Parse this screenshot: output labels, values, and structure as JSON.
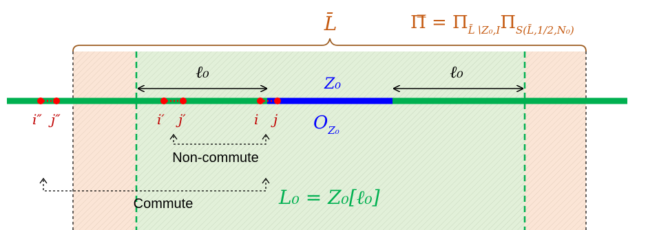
{
  "labels": {
    "l_bar": "L̄",
    "pi_formula": "Π̿ = Π",
    "pi_sub1": "L̄∖Z₀,I",
    "pi_mid": "Π",
    "pi_sub2": "S(L̄,1/2,N₀)",
    "ell0_left": "ℓ₀",
    "ell0_right": "ℓ₀",
    "z0": "Z₀",
    "o_z0": "O",
    "o_z0_sub": "Z₀",
    "i_dd": "i″",
    "j_dd": "j″",
    "i_p": "i′",
    "j_p": "j′",
    "i": "i",
    "j": "j",
    "non_commute": "Non-commute",
    "commute": "Commute",
    "l0_eq": "L₀ = Z₀[ℓ₀]"
  },
  "colors": {
    "outer_region": "#fbe5d6",
    "inner_region": "#e2f0d9",
    "line": "#00b050",
    "highlight": "#0000ff",
    "sites": "#ff0000",
    "brace": "#9c5b1f",
    "green_text": "#00b050",
    "blue_text": "#0000ff",
    "red_text": "#c00000",
    "dash_black": "#000000"
  }
}
